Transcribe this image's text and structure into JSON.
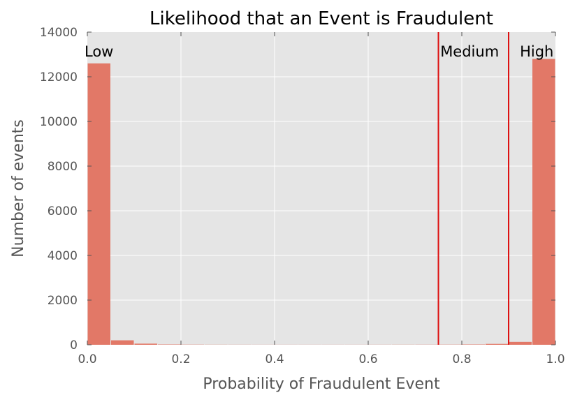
{
  "chart_data": {
    "type": "bar",
    "title": "Likelihood that an Event is Fraudulent",
    "xlabel": "Probability of Fraudulent Event",
    "ylabel": "Number of events",
    "xlim": [
      0.0,
      1.0
    ],
    "ylim": [
      0,
      14000
    ],
    "x_ticks": [
      "0.0",
      "0.2",
      "0.4",
      "0.6",
      "0.8",
      "1.0"
    ],
    "y_ticks": [
      "0",
      "2000",
      "4000",
      "6000",
      "8000",
      "10000",
      "12000",
      "14000"
    ],
    "grid": true,
    "bins": [
      {
        "start": 0.0,
        "end": 0.05,
        "value": 12600
      },
      {
        "start": 0.05,
        "end": 0.1,
        "value": 200
      },
      {
        "start": 0.1,
        "end": 0.15,
        "value": 50
      },
      {
        "start": 0.15,
        "end": 0.2,
        "value": 15
      },
      {
        "start": 0.2,
        "end": 0.25,
        "value": 8
      },
      {
        "start": 0.25,
        "end": 0.3,
        "value": 5
      },
      {
        "start": 0.3,
        "end": 0.35,
        "value": 4
      },
      {
        "start": 0.35,
        "end": 0.4,
        "value": 3
      },
      {
        "start": 0.4,
        "end": 0.45,
        "value": 3
      },
      {
        "start": 0.45,
        "end": 0.5,
        "value": 3
      },
      {
        "start": 0.5,
        "end": 0.55,
        "value": 3
      },
      {
        "start": 0.55,
        "end": 0.6,
        "value": 3
      },
      {
        "start": 0.6,
        "end": 0.65,
        "value": 4
      },
      {
        "start": 0.65,
        "end": 0.7,
        "value": 5
      },
      {
        "start": 0.7,
        "end": 0.75,
        "value": 6
      },
      {
        "start": 0.75,
        "end": 0.8,
        "value": 8
      },
      {
        "start": 0.8,
        "end": 0.85,
        "value": 15
      },
      {
        "start": 0.85,
        "end": 0.9,
        "value": 40
      },
      {
        "start": 0.9,
        "end": 0.95,
        "value": 130
      },
      {
        "start": 0.95,
        "end": 1.0,
        "value": 12800
      }
    ],
    "thresholds": [
      0.75,
      0.9
    ],
    "annotations": [
      {
        "text": "Low",
        "x": 0.0
      },
      {
        "text": "Medium",
        "x": 0.76
      },
      {
        "text": "High",
        "x": 0.93
      }
    ],
    "colors": {
      "bar": "#E27867",
      "threshold": "#DD1111",
      "plot_background": "#E5E5E5",
      "grid": "#FFFFFF",
      "axis_text": "#555555"
    }
  }
}
